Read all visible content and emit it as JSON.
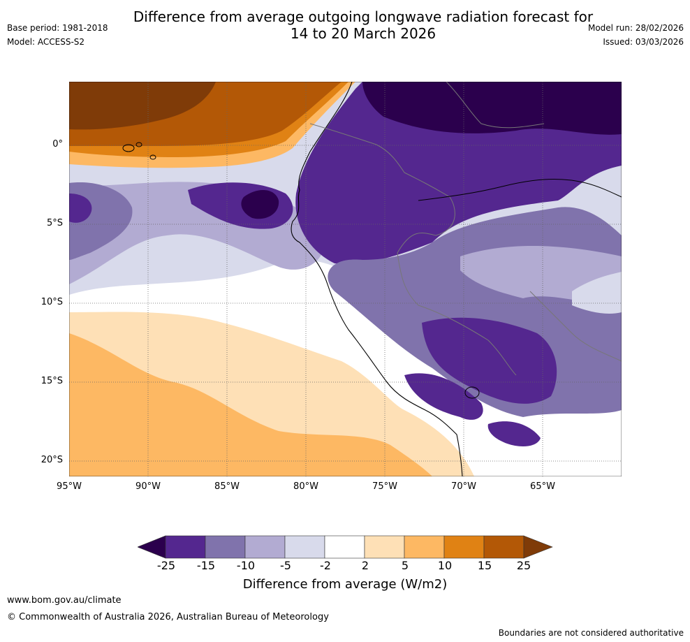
{
  "header": {
    "title_line1": "Difference from average outgoing longwave radiation forecast for",
    "title_line2": "14 to 20 March 2026",
    "base_period": "Base period: 1981-2018",
    "model": "Model: ACCESS-S2",
    "model_run": "Model run: 28/02/2026",
    "issued": "Issued: 03/03/2026"
  },
  "map": {
    "lat_labels": [
      "0°",
      "5°S",
      "10°S",
      "15°S",
      "20°S"
    ],
    "lon_labels": [
      "95°W",
      "90°W",
      "85°W",
      "80°W",
      "75°W",
      "70°W",
      "65°W"
    ]
  },
  "legend": {
    "title": "Difference from average (W/m2)",
    "ticks": [
      "-25",
      "-15",
      "-10",
      "-5",
      "-2",
      "2",
      "5",
      "10",
      "15",
      "25"
    ],
    "colors": [
      "#2b004d",
      "#54278f",
      "#8073ac",
      "#b2abd2",
      "#d8daeb",
      "#ffffff",
      "#fee0b6",
      "#fdb863",
      "#e08214",
      "#b35806",
      "#7f3b08"
    ]
  },
  "footer": {
    "website": "www.bom.gov.au/climate",
    "copyright": "© Commonwealth of Australia 2026, Australian Bureau of Meteorology",
    "disclaimer": "Boundaries are not considered authoritative"
  }
}
